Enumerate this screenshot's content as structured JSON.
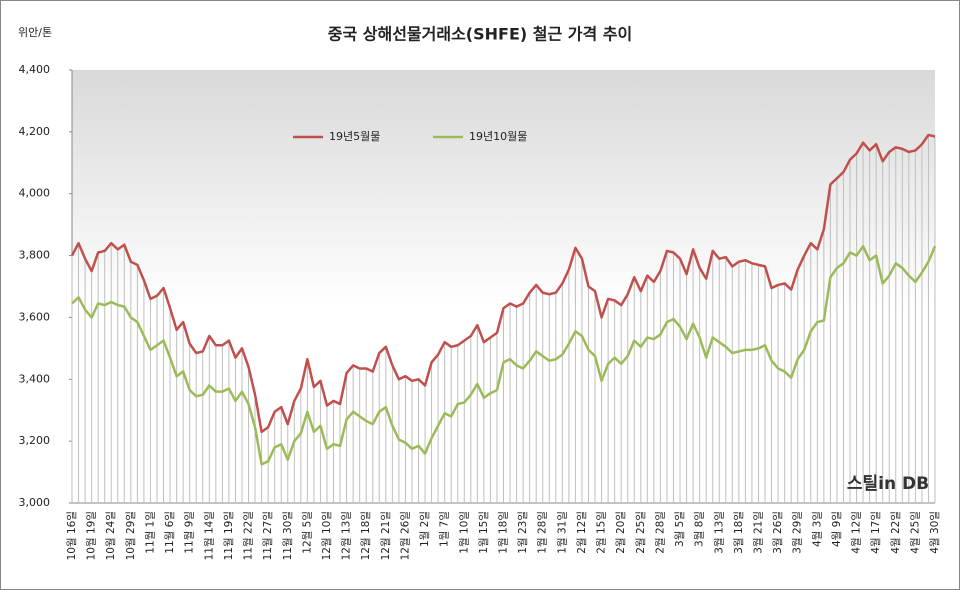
{
  "chart_data": {
    "type": "line",
    "title": "중국 상해선물거래소(SHFE) 철근 가격 추이",
    "y_label": "위안/톤",
    "watermark": "스틸in DB",
    "categories": [
      "10월 16일",
      null,
      null,
      "10월 19일",
      null,
      null,
      "10월 24일",
      null,
      null,
      "10월 29일",
      null,
      null,
      "11월 1일",
      null,
      null,
      "11월 6일",
      null,
      null,
      "11월 9일",
      null,
      null,
      "11월 14일",
      null,
      null,
      "11월 19일",
      null,
      null,
      "11월 22일",
      null,
      null,
      "11월 27일",
      null,
      null,
      "11월 30일",
      null,
      null,
      "12월 5일",
      null,
      null,
      "12월 10일",
      null,
      null,
      "12월 13일",
      null,
      null,
      "12월 18일",
      null,
      null,
      "12월 21일",
      null,
      null,
      "12월 26일",
      null,
      null,
      "1월 2일",
      null,
      null,
      "1월 7일",
      null,
      null,
      "1월 10일",
      null,
      null,
      "1월 15일",
      null,
      null,
      "1월 18일",
      null,
      null,
      "1월 23일",
      null,
      null,
      "1월 28일",
      null,
      null,
      "1월 31일",
      null,
      null,
      "2월 12일",
      null,
      null,
      "2월 15일",
      null,
      null,
      "2월 20일",
      null,
      null,
      "2월 25일",
      null,
      null,
      "2월 28일",
      null,
      null,
      "3월 5일",
      null,
      null,
      "3월 8일",
      null,
      null,
      "3월 13일",
      null,
      null,
      "3월 18일",
      null,
      null,
      "3월 21일",
      null,
      null,
      "3월 26일",
      null,
      null,
      "3월 29일",
      null,
      null,
      "4월 3일",
      null,
      null,
      "4월 9일",
      null,
      null,
      "4월 12일",
      null,
      null,
      "4월 17일",
      null,
      null,
      "4월 22일",
      null,
      null,
      "4월 25일",
      null,
      null,
      "4월 30일"
    ],
    "series": [
      {
        "name": "19년5월물",
        "color": "#c0504d",
        "values": [
          3800,
          3840,
          3790,
          3750,
          3810,
          3815,
          3840,
          3820,
          3835,
          3780,
          3770,
          3720,
          3660,
          3670,
          3695,
          3630,
          3560,
          3585,
          3515,
          3485,
          3490,
          3540,
          3510,
          3510,
          3525,
          3470,
          3500,
          3440,
          3350,
          3230,
          3245,
          3295,
          3310,
          3255,
          3330,
          3370,
          3465,
          3375,
          3395,
          3315,
          3330,
          3320,
          3420,
          3445,
          3435,
          3435,
          3425,
          3485,
          3505,
          3445,
          3400,
          3410,
          3395,
          3400,
          3380,
          3455,
          3480,
          3520,
          3505,
          3510,
          3525,
          3540,
          3575,
          3520,
          3535,
          3550,
          3630,
          3645,
          3635,
          3645,
          3680,
          3705,
          3680,
          3675,
          3680,
          3710,
          3755,
          3825,
          3790,
          3700,
          3685,
          3600,
          3660,
          3655,
          3640,
          3675,
          3730,
          3685,
          3735,
          3715,
          3750,
          3815,
          3810,
          3790,
          3740,
          3820,
          3760,
          3725,
          3815,
          3790,
          3795,
          3765,
          3780,
          3785,
          3775,
          3770,
          3765,
          3695,
          3705,
          3710,
          3690,
          3755,
          3800,
          3840,
          3820,
          3885,
          4030,
          4050,
          4070,
          4110,
          4130,
          4165,
          4140,
          4160,
          4105,
          4135,
          4150,
          4145,
          4135,
          4140,
          4160,
          4190,
          4185
        ]
      },
      {
        "name": "19년10월물",
        "color": "#9bbb59",
        "values": [
          3645,
          3665,
          3625,
          3600,
          3645,
          3640,
          3650,
          3640,
          3635,
          3600,
          3585,
          3540,
          3495,
          3510,
          3525,
          3470,
          3410,
          3425,
          3365,
          3345,
          3350,
          3380,
          3360,
          3360,
          3370,
          3330,
          3360,
          3320,
          3245,
          3125,
          3135,
          3180,
          3190,
          3140,
          3200,
          3225,
          3295,
          3230,
          3250,
          3175,
          3190,
          3185,
          3270,
          3295,
          3280,
          3265,
          3255,
          3295,
          3310,
          3250,
          3205,
          3195,
          3175,
          3185,
          3160,
          3210,
          3250,
          3290,
          3280,
          3320,
          3325,
          3350,
          3385,
          3340,
          3355,
          3365,
          3455,
          3465,
          3445,
          3435,
          3460,
          3490,
          3475,
          3460,
          3465,
          3480,
          3515,
          3555,
          3540,
          3495,
          3475,
          3395,
          3450,
          3470,
          3450,
          3475,
          3525,
          3505,
          3535,
          3530,
          3545,
          3585,
          3595,
          3570,
          3530,
          3580,
          3535,
          3470,
          3535,
          3520,
          3505,
          3485,
          3490,
          3495,
          3495,
          3500,
          3510,
          3460,
          3435,
          3425,
          3405,
          3465,
          3495,
          3555,
          3585,
          3590,
          3730,
          3760,
          3775,
          3810,
          3800,
          3830,
          3785,
          3800,
          3710,
          3735,
          3775,
          3760,
          3735,
          3715,
          3745,
          3780,
          3830
        ]
      }
    ],
    "ylim": [
      3000,
      4400
    ],
    "yticks": [
      {
        "value": 3000,
        "label": "3,000"
      },
      {
        "value": 3200,
        "label": "3,200"
      },
      {
        "value": 3400,
        "label": "3,400"
      },
      {
        "value": 3600,
        "label": "3,600"
      },
      {
        "value": 3800,
        "label": "3,800"
      },
      {
        "value": 4000,
        "label": "4,000"
      },
      {
        "value": 4200,
        "label": "4,200"
      },
      {
        "value": 4400,
        "label": "4,400"
      }
    ],
    "drop_lines": true
  }
}
